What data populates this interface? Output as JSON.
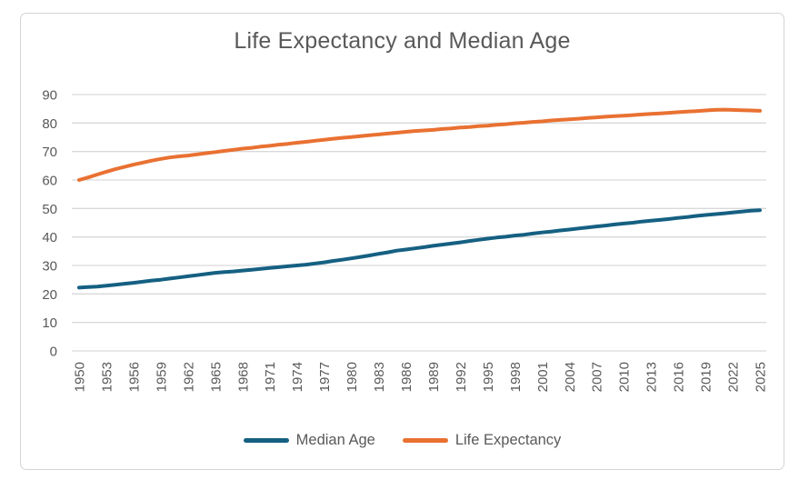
{
  "styles": {
    "background_color": "#FFFFFF",
    "frame_border_color": "#D4D4D4",
    "gridline_color": "#D9D9D9",
    "axis_label_color": "#595959",
    "title_color": "#595959",
    "median_age_color": "#156082",
    "life_expectancy_color": "#E97132"
  },
  "chart_data": {
    "type": "line",
    "title": "Life Expectancy and Median Age",
    "xlabel": "",
    "ylabel": "",
    "grid": "horizontal",
    "legend_position": "bottom",
    "ylim": [
      0,
      90
    ],
    "yticks": [
      0,
      10,
      20,
      30,
      40,
      50,
      60,
      70,
      80,
      90
    ],
    "x": [
      1950,
      1951,
      1952,
      1953,
      1954,
      1955,
      1956,
      1957,
      1958,
      1959,
      1960,
      1961,
      1962,
      1963,
      1964,
      1965,
      1966,
      1967,
      1968,
      1969,
      1970,
      1971,
      1972,
      1973,
      1974,
      1975,
      1976,
      1977,
      1978,
      1979,
      1980,
      1981,
      1982,
      1983,
      1984,
      1985,
      1986,
      1987,
      1988,
      1989,
      1990,
      1991,
      1992,
      1993,
      1994,
      1995,
      1996,
      1997,
      1998,
      1999,
      2000,
      2001,
      2002,
      2003,
      2004,
      2005,
      2006,
      2007,
      2008,
      2009,
      2010,
      2011,
      2012,
      2013,
      2014,
      2015,
      2016,
      2017,
      2018,
      2019,
      2020,
      2021,
      2022,
      2023,
      2024,
      2025
    ],
    "x_tick_labels": [
      "1950",
      "1953",
      "1956",
      "1959",
      "1962",
      "1965",
      "1968",
      "1971",
      "1974",
      "1977",
      "1980",
      "1983",
      "1986",
      "1989",
      "1992",
      "1995",
      "1998",
      "2001",
      "2004",
      "2007",
      "2010",
      "2013",
      "2016",
      "2019",
      "2022",
      "2025"
    ],
    "series": [
      {
        "name": "Median Age",
        "color": "#156082",
        "values": [
          22.2,
          22.4,
          22.6,
          22.9,
          23.2,
          23.6,
          23.9,
          24.3,
          24.7,
          25.0,
          25.4,
          25.8,
          26.2,
          26.6,
          27.0,
          27.4,
          27.7,
          27.9,
          28.2,
          28.5,
          28.8,
          29.1,
          29.4,
          29.7,
          30.0,
          30.3,
          30.7,
          31.1,
          31.6,
          32.0,
          32.5,
          33.0,
          33.5,
          34.1,
          34.6,
          35.2,
          35.6,
          36.0,
          36.4,
          36.9,
          37.3,
          37.7,
          38.1,
          38.6,
          39.0,
          39.4,
          39.8,
          40.1,
          40.5,
          40.8,
          41.2,
          41.6,
          41.9,
          42.3,
          42.6,
          43.0,
          43.3,
          43.7,
          44.0,
          44.4,
          44.7,
          45.0,
          45.4,
          45.7,
          46.0,
          46.3,
          46.7,
          47.0,
          47.4,
          47.7,
          48.0,
          48.3,
          48.6,
          48.9,
          49.2,
          49.4
        ]
      },
      {
        "name": "Life Expectancy",
        "color": "#E97132",
        "values": [
          60.0,
          60.9,
          61.9,
          62.9,
          63.8,
          64.6,
          65.4,
          66.1,
          66.8,
          67.4,
          67.9,
          68.3,
          68.6,
          69.0,
          69.4,
          69.8,
          70.2,
          70.6,
          71.0,
          71.3,
          71.7,
          72.0,
          72.4,
          72.7,
          73.1,
          73.4,
          73.8,
          74.1,
          74.5,
          74.8,
          75.1,
          75.4,
          75.7,
          76.0,
          76.3,
          76.6,
          76.9,
          77.2,
          77.4,
          77.6,
          77.9,
          78.1,
          78.4,
          78.6,
          78.9,
          79.1,
          79.4,
          79.6,
          79.9,
          80.1,
          80.4,
          80.6,
          80.9,
          81.1,
          81.3,
          81.5,
          81.8,
          82.0,
          82.2,
          82.4,
          82.6,
          82.8,
          83.0,
          83.2,
          83.4,
          83.6,
          83.8,
          84.0,
          84.2,
          84.4,
          84.6,
          84.7,
          84.6,
          84.5,
          84.4,
          84.3
        ]
      }
    ]
  }
}
